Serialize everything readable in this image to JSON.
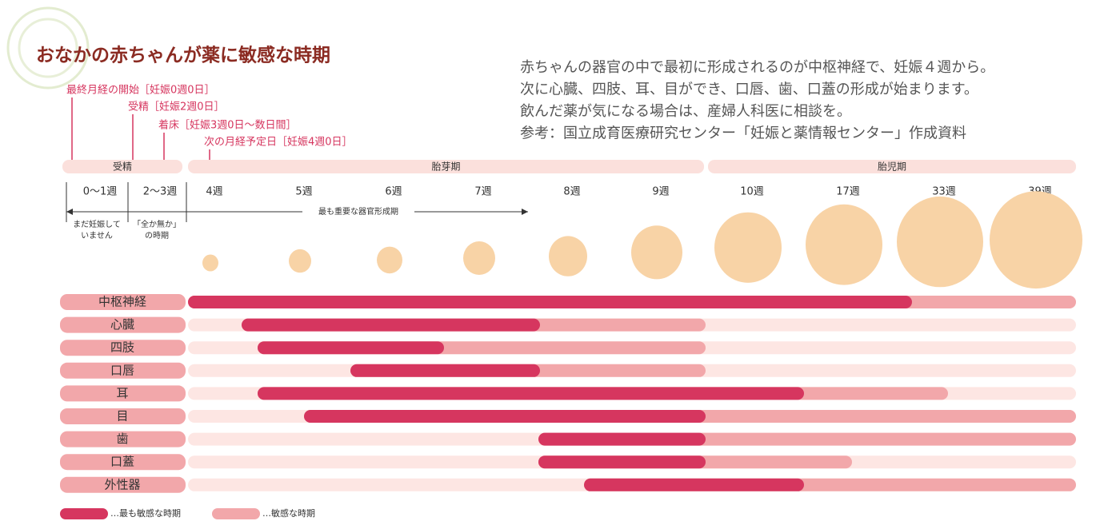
{
  "header": {
    "title": "おなかの赤ちゃんが薬に敏感な時期",
    "description": [
      "赤ちゃんの器官の中で最初に形成されるのが中枢神経で、妊娠４週から。",
      "次に心臓、四肢、耳、目ができ、口唇、歯、口蓋の形成が始まります。",
      "飲んだ薬が気になる場合は、産婦人科医に相談を。",
      "参考：国立成育医療研究センター「妊娠と薬情報センター」作成資料"
    ]
  },
  "annotations": [
    "最終月経の開始［妊娠0週0日］",
    "受精［妊娠2週0日］",
    "着床［妊娠3週0日～数日間］",
    "次の月経予定日［妊娠4週0日］"
  ],
  "phases": [
    "受精",
    "胎芽期",
    "胎児期"
  ],
  "weeks": [
    "0～1週",
    "2～3週",
    "4週",
    "5週",
    "6週",
    "7週",
    "8週",
    "9週",
    "10週",
    "17週",
    "33週",
    "39週"
  ],
  "week_notes": [
    [
      "まだ妊娠して",
      "いません"
    ],
    [
      "「全か無か」",
      "の時期"
    ]
  ],
  "key_period": "最も重要な器官形成期",
  "rows": [
    "中枢神経",
    "心臓",
    "四肢",
    "口唇",
    "耳",
    "目",
    "歯",
    "口蓋",
    "外性器"
  ],
  "legend": [
    "…最も敏感な時期",
    "…敏感な時期"
  ]
}
